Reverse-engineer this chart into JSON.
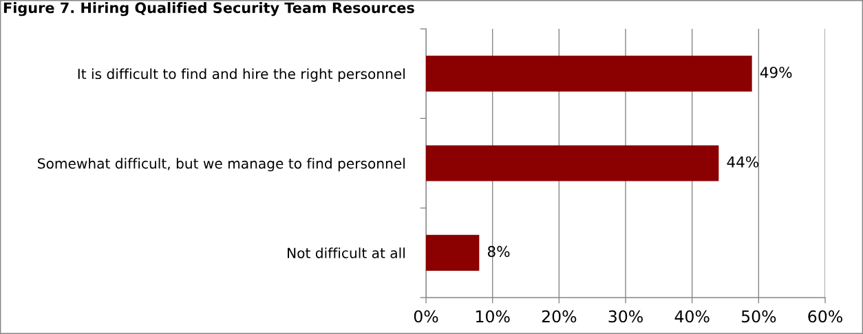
{
  "chart_data": {
    "type": "bar",
    "orientation": "horizontal",
    "title": "Figure 7. Hiring Qualified Security Team Resources",
    "categories": [
      "It is difficult to find and hire the right personnel",
      "Somewhat difficult, but we manage to find personnel",
      "Not difficult at all"
    ],
    "values": [
      49,
      44,
      8
    ],
    "color": "#8b0000",
    "value_labels": [
      "49%",
      "44%",
      "8%"
    ],
    "xlim": [
      0,
      60
    ],
    "xticks": [
      {
        "value": 0,
        "label": "0%"
      },
      {
        "value": 10,
        "label": "10%"
      },
      {
        "value": 20,
        "label": "20%"
      },
      {
        "value": 30,
        "label": "30%"
      },
      {
        "value": 40,
        "label": "40%"
      },
      {
        "value": 50,
        "label": "50%"
      },
      {
        "value": 60,
        "label": "60%"
      }
    ],
    "grid": "x"
  }
}
